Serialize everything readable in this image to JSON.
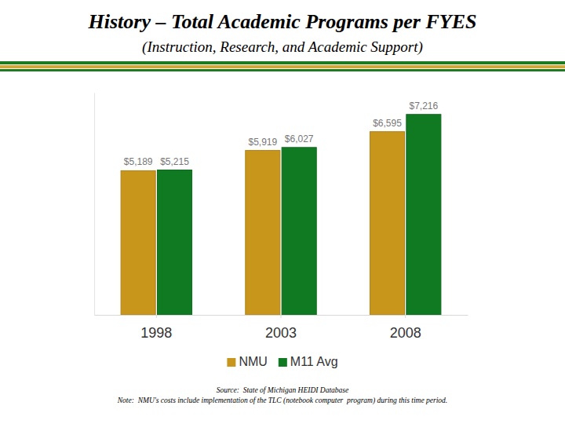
{
  "chart_data": {
    "type": "bar",
    "title": "History – Total Academic Programs per FYES",
    "subtitle": "(Instruction, Research, and Academic Support)",
    "categories": [
      "1998",
      "2003",
      "2008"
    ],
    "series": [
      {
        "name": "NMU",
        "color": "#c9961c",
        "values": [
          5189,
          5919,
          6595
        ],
        "value_labels": [
          "$5,189",
          "$5,919",
          "$6,595"
        ]
      },
      {
        "name": "M11 Avg",
        "color": "#107a22",
        "values": [
          5215,
          6027,
          7216
        ],
        "value_labels": [
          "$5,215",
          "$6,027",
          "$7,216"
        ]
      }
    ],
    "ylim": [
      0,
      8000
    ],
    "grid": false,
    "legend": "bottom",
    "data_labels": true,
    "tick_labels": "x",
    "annotations": [
      "Source:  State of Michigan HEIDI Database",
      "Note:  NMU's costs include implementation of the TLC (notebook computer  program) during this time period."
    ]
  }
}
